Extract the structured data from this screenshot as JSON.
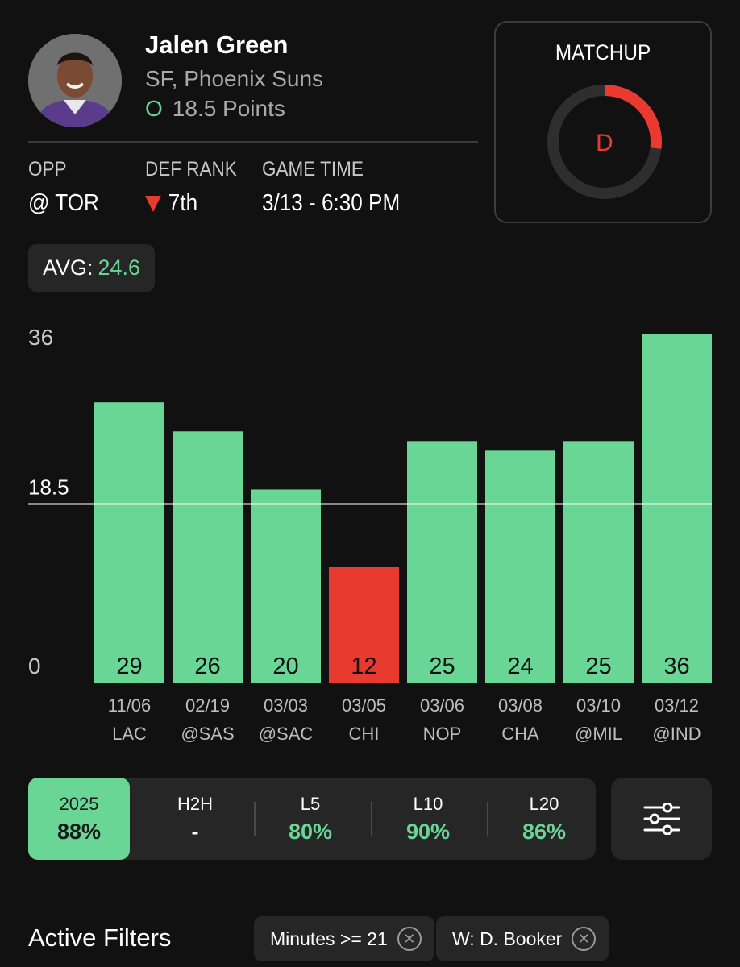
{
  "player": {
    "name": "Jalen Green",
    "position_team": "SF, Phoenix Suns",
    "over_symbol": "O",
    "line": "18.5 Points"
  },
  "game_info": {
    "opp_label": "OPP",
    "opp_value": "@ TOR",
    "def_rank_label": "DEF RANK",
    "def_rank_value": "7th",
    "game_time_label": "GAME TIME",
    "game_time_value": "3/13 - 6:30 PM"
  },
  "matchup": {
    "title": "MATCHUP",
    "grade": "D",
    "fraction": 0.27
  },
  "average": {
    "label": "AVG:",
    "value": "24.6"
  },
  "chart_data": {
    "type": "bar",
    "categories": [
      "11/06",
      "02/19",
      "03/03",
      "03/05",
      "03/06",
      "03/08",
      "03/10",
      "03/12"
    ],
    "opponents": [
      "LAC",
      "@SAS",
      "@SAC",
      "CHI",
      "NOP",
      "CHA",
      "@MIL",
      "@IND"
    ],
    "values": [
      29,
      26,
      20,
      12,
      25,
      24,
      25,
      36
    ],
    "line": 18.5,
    "line_label": "18.5",
    "ylim": [
      0,
      36
    ],
    "yticks": [
      "36",
      "0"
    ],
    "colors": {
      "over": "#6ad695",
      "under": "#e93a2f"
    }
  },
  "splits": [
    {
      "label": "2025",
      "value": "88%",
      "active": true
    },
    {
      "label": "H2H",
      "value": "-",
      "active": false
    },
    {
      "label": "L5",
      "value": "80%",
      "active": false
    },
    {
      "label": "L10",
      "value": "90%",
      "active": false
    },
    {
      "label": "L20",
      "value": "86%",
      "active": false
    }
  ],
  "filters": {
    "title": "Active Filters",
    "chips": [
      "Minutes >= 21",
      "W: D. Booker"
    ]
  },
  "colors": {
    "accent_green": "#6ad695",
    "accent_red": "#e93a2f",
    "background": "#111111",
    "card": "#262626"
  }
}
